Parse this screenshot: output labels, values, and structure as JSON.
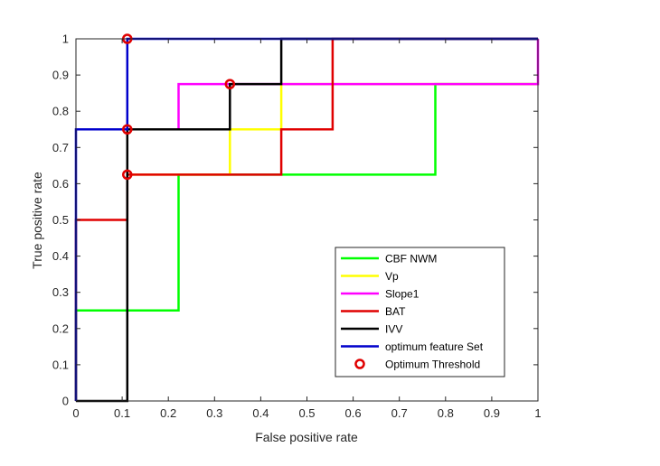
{
  "chart_data": {
    "type": "line",
    "title": "",
    "xlabel": "False positive rate",
    "ylabel": "True positive rate",
    "xlim": [
      0,
      1
    ],
    "ylim": [
      0,
      1
    ],
    "xticks": [
      0,
      0.1,
      0.2,
      0.3,
      0.4,
      0.5,
      0.6,
      0.7,
      0.8,
      0.9,
      1
    ],
    "yticks": [
      0,
      0.1,
      0.2,
      0.3,
      0.4,
      0.5,
      0.6,
      0.7,
      0.8,
      0.9,
      1
    ],
    "xtick_labels": [
      "0",
      "0.1",
      "0.2",
      "0.3",
      "0.4",
      "0.5",
      "0.6",
      "0.7",
      "0.8",
      "0.9",
      "1"
    ],
    "ytick_labels": [
      "0",
      "0.1",
      "0.2",
      "0.3",
      "0.4",
      "0.5",
      "0.6",
      "0.7",
      "0.8",
      "0.9",
      "1"
    ],
    "grid": false,
    "legend_position": "bottom-right",
    "series": [
      {
        "name": "CBF NWM",
        "color": "#00ff00",
        "x": [
          0,
          0,
          0.2222,
          0.2222,
          0.7778,
          0.7778,
          1
        ],
        "y": [
          0,
          0.25,
          0.25,
          0.625,
          0.625,
          0.875,
          0.875
        ]
      },
      {
        "name": "Vp",
        "color": "#ffff00",
        "x": [
          0.1111,
          0.3333,
          0.3333,
          0.4444,
          0.4444,
          1
        ],
        "y": [
          0.625,
          0.625,
          0.75,
          0.75,
          0.875,
          0.875
        ]
      },
      {
        "name": "Slope1",
        "color": "#ff00ff",
        "x": [
          0.2222,
          0.2222,
          1,
          1
        ],
        "y": [
          0.75,
          0.875,
          0.875,
          1
        ]
      },
      {
        "name": "BAT",
        "color": "#e00000",
        "x": [
          0,
          0,
          0.1111,
          0.1111,
          0.4444,
          0.4444,
          0.5556,
          0.5556,
          1
        ],
        "y": [
          0,
          0.5,
          0.5,
          0.625,
          0.625,
          0.75,
          0.75,
          1,
          1
        ]
      },
      {
        "name": "IVV",
        "color": "#000000",
        "x": [
          0,
          0.1111,
          0.1111,
          0.3333,
          0.3333,
          0.4444,
          0.4444,
          1
        ],
        "y": [
          0,
          0,
          0.75,
          0.75,
          0.875,
          0.875,
          1,
          1
        ]
      },
      {
        "name": "optimum feature Set",
        "color": "#0000cc",
        "x": [
          0,
          0,
          0.1111,
          0.1111,
          1
        ],
        "y": [
          0,
          0.75,
          0.75,
          1,
          1
        ]
      }
    ],
    "markers": {
      "name": "Optimum Threshold",
      "color": "#e00000",
      "x": [
        0.1111,
        0.1111,
        0.1111,
        0.3333
      ],
      "y": [
        1,
        0.75,
        0.625,
        0.875
      ]
    }
  }
}
